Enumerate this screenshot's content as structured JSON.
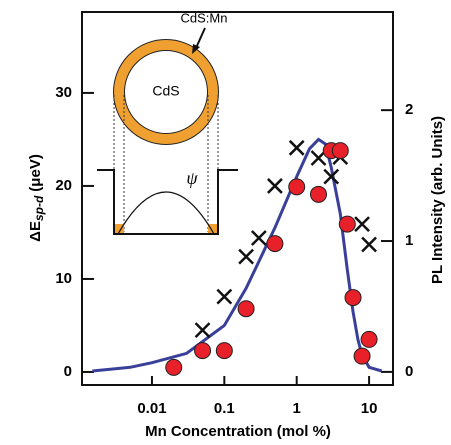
{
  "chart_data": {
    "type": "scatter",
    "x_label": "Mn Concentration (mol %)",
    "y_label": {
      "main": "ΔE",
      "sub": "sp-d",
      "unit": "(μeV)"
    },
    "y2_label": "PL Intensity (arb. Units)",
    "x_log": true,
    "xlim": [
      0.00108,
      21.4
    ],
    "xticks": [
      0.01,
      0.1,
      1,
      10
    ],
    "ylim": [
      -1.4,
      38.7
    ],
    "yticks": [
      0,
      10,
      20,
      30
    ],
    "y2lim": [
      -0.1,
      2.75
    ],
    "y2ticks": [
      0,
      1,
      2
    ],
    "inset": {
      "shell_label": "CdS:Mn",
      "core_label": "CdS",
      "wavefunction_label": "ψ"
    },
    "series": [
      {
        "kind": "circle",
        "color": "#e8202a",
        "x": [
          0.02,
          0.05,
          0.1,
          0.2,
          0.5,
          1,
          2,
          3,
          4,
          5,
          6,
          8,
          10
        ],
        "values": [
          0.5,
          2.3,
          2.3,
          6.8,
          13.8,
          19.9,
          19.1,
          23.8,
          23.8,
          15.9,
          8.0,
          1.7,
          3.5
        ]
      },
      {
        "kind": "cross",
        "color": "#111111",
        "x": [
          0.05,
          0.1,
          0.2,
          0.3,
          0.5,
          1,
          2,
          3,
          4,
          8,
          10
        ],
        "values": [
          4.5,
          8.1,
          12.4,
          14.4,
          20,
          24.1,
          23.0,
          21,
          23.1,
          15.9,
          13.7
        ]
      },
      {
        "kind": "line",
        "color": "#3a3f9a",
        "x": [
          0.0015,
          0.005,
          0.01,
          0.03,
          0.1,
          0.2,
          0.5,
          1,
          1.5,
          2,
          2.5,
          3,
          4,
          5,
          6,
          7,
          8,
          10,
          15
        ],
        "values": [
          0.1,
          0.5,
          1,
          2,
          5,
          9,
          15.5,
          21,
          24,
          25,
          24.5,
          22,
          17,
          11,
          6.5,
          3.5,
          1.8,
          0.5,
          0.1
        ]
      }
    ]
  }
}
